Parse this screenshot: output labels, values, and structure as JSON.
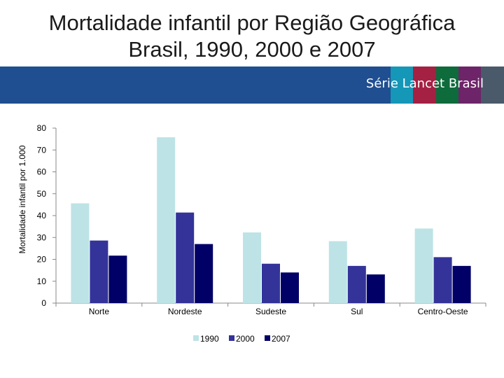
{
  "slide": {
    "title_line1": "Mortalidade infantil por  Região Geográfica",
    "title_line2": "Brasil, 1990, 2000 e 2007",
    "series_label": "Série Lancet Brasil",
    "banner_color": "#1f4e91",
    "stripe_colors": [
      "#1597b8",
      "#a52143",
      "#0e6b3b",
      "#6e2468",
      "#4a5a6a"
    ]
  },
  "chart_data": {
    "type": "bar",
    "title": "",
    "xlabel": "",
    "ylabel": "Mortalidade infantil por 1.000",
    "ylim": [
      0,
      80
    ],
    "yticks": [
      0,
      10,
      20,
      30,
      40,
      50,
      60,
      70,
      80
    ],
    "grid": false,
    "legend_position": "bottom",
    "categories": [
      "Norte",
      "Nordeste",
      "Sudeste",
      "Sul",
      "Centro-Oeste"
    ],
    "series": [
      {
        "name": "1990",
        "color": "#bde3e6",
        "values": [
          45.6,
          75.8,
          32.3,
          28.3,
          34.1
        ]
      },
      {
        "name": "2000",
        "color": "#33339a",
        "values": [
          28.6,
          41.4,
          18.0,
          17.0,
          21.0
        ]
      },
      {
        "name": "2007",
        "color": "#000066",
        "values": [
          21.7,
          27.0,
          14.0,
          13.1,
          17.0
        ]
      }
    ]
  }
}
